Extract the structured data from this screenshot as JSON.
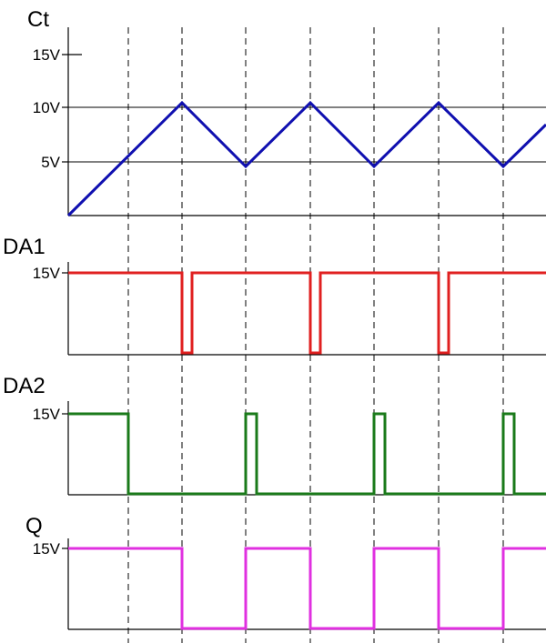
{
  "panels": [
    {
      "name": "Ct",
      "color": "#1010b0",
      "ticks": [
        "15V",
        "10V",
        "5V"
      ],
      "kind": "triangle",
      "start_v": 0,
      "peaks_v": [
        10.5,
        4.6,
        10.5,
        4.6,
        10.5,
        4.6
      ],
      "end_v": 8.5
    },
    {
      "name": "DA1",
      "color": "#e02020",
      "ticks": [
        "15V"
      ],
      "kind": "pulse",
      "high_v": 15,
      "low_v": 0,
      "initial": "high",
      "low_pulses": 3
    },
    {
      "name": "DA2",
      "color": "#1a7a1a",
      "ticks": [
        "15V"
      ],
      "kind": "pulse",
      "high_v": 15,
      "low_v": 0,
      "initial": "high",
      "high_pulses": 3
    },
    {
      "name": "Q",
      "color": "#e030e0",
      "ticks": [
        "15V"
      ],
      "kind": "square",
      "high_v": 15,
      "low_v": 0,
      "initial": "high"
    }
  ],
  "grid": {
    "vertical_dashed": true,
    "horizontal_lines_ct": true
  }
}
